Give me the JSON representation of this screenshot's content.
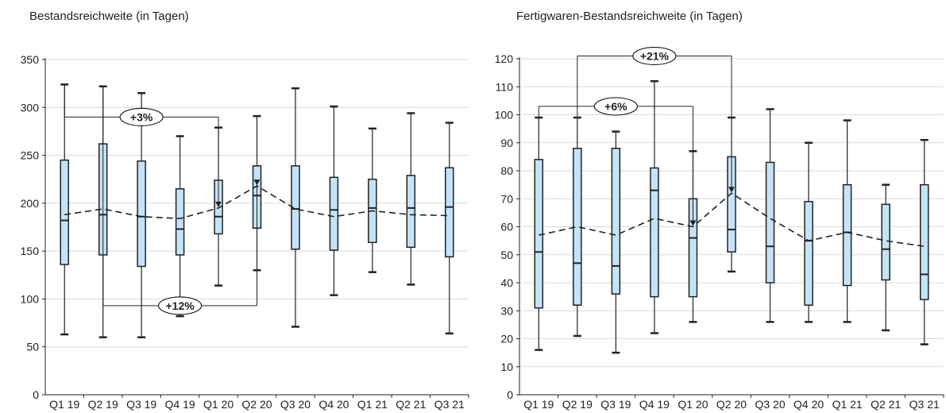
{
  "chart_data": [
    {
      "type": "box",
      "title": "Bestandsreichweite (in Tagen)",
      "categories": [
        "Q1 19",
        "Q2 19",
        "Q3 19",
        "Q4 19",
        "Q1 20",
        "Q2 20",
        "Q3 20",
        "Q4 20",
        "Q1 21",
        "Q2 21",
        "Q3 21"
      ],
      "ylim": [
        0,
        350
      ],
      "yticks": [
        0,
        50,
        100,
        150,
        200,
        250,
        300,
        350
      ],
      "grid": true,
      "box_fill": "#c5e3f7",
      "boxes": [
        {
          "min": 63,
          "q1": 136,
          "median": 182,
          "q3": 245,
          "max": 324
        },
        {
          "min": 60,
          "q1": 146,
          "median": 188,
          "q3": 262,
          "max": 322
        },
        {
          "min": 60,
          "q1": 134,
          "median": 186,
          "q3": 244,
          "max": 315
        },
        {
          "min": 82,
          "q1": 146,
          "median": 173,
          "q3": 215,
          "max": 270
        },
        {
          "min": 114,
          "q1": 168,
          "median": 186,
          "q3": 224,
          "max": 279
        },
        {
          "min": 130,
          "q1": 174,
          "median": 208,
          "q3": 239,
          "max": 291
        },
        {
          "min": 71,
          "q1": 152,
          "median": 194,
          "q3": 239,
          "max": 320
        },
        {
          "min": 104,
          "q1": 151,
          "median": 193,
          "q3": 227,
          "max": 301
        },
        {
          "min": 128,
          "q1": 159,
          "median": 195,
          "q3": 225,
          "max": 278
        },
        {
          "min": 115,
          "q1": 154,
          "median": 195,
          "q3": 229,
          "max": 294
        },
        {
          "min": 64,
          "q1": 144,
          "median": 196,
          "q3": 237,
          "max": 284
        }
      ],
      "mean_line": [
        188,
        194,
        186,
        184,
        195,
        218,
        194,
        186,
        192,
        188,
        187
      ],
      "annotations": [
        {
          "label": "+12%",
          "from": 1,
          "to": 5,
          "level": 93
        },
        {
          "label": "+3%",
          "from": 0,
          "to": 4,
          "level": 290
        }
      ]
    },
    {
      "type": "box",
      "title": "Fertigwaren-Bestandsreichweite (in Tagen)",
      "categories": [
        "Q1 19",
        "Q2 19",
        "Q3 19",
        "Q4 19",
        "Q1 20",
        "Q2 20",
        "Q3 20",
        "Q4 20",
        "Q1 21",
        "Q2 21",
        "Q3 21"
      ],
      "ylim": [
        0,
        120
      ],
      "yticks": [
        0,
        10,
        20,
        30,
        40,
        50,
        60,
        70,
        80,
        90,
        100,
        110,
        120
      ],
      "grid": true,
      "box_fill": "#c5e3f7",
      "boxes": [
        {
          "min": 16,
          "q1": 31,
          "median": 51,
          "q3": 84,
          "max": 99
        },
        {
          "min": 21,
          "q1": 32,
          "median": 47,
          "q3": 88,
          "max": 99
        },
        {
          "min": 15,
          "q1": 36,
          "median": 46,
          "q3": 88,
          "max": 94
        },
        {
          "min": 22,
          "q1": 35,
          "median": 73,
          "q3": 81,
          "max": 112
        },
        {
          "min": 26,
          "q1": 35,
          "median": 56,
          "q3": 70,
          "max": 87
        },
        {
          "min": 44,
          "q1": 51,
          "median": 59,
          "q3": 85,
          "max": 99
        },
        {
          "min": 26,
          "q1": 40,
          "median": 53,
          "q3": 83,
          "max": 102
        },
        {
          "min": 26,
          "q1": 32,
          "median": 55,
          "q3": 69,
          "max": 90
        },
        {
          "min": 26,
          "q1": 39,
          "median": 58,
          "q3": 75,
          "max": 98
        },
        {
          "min": 23,
          "q1": 41,
          "median": 52,
          "q3": 68,
          "max": 75
        },
        {
          "min": 18,
          "q1": 34,
          "median": 43,
          "q3": 75,
          "max": 91
        }
      ],
      "mean_line": [
        57,
        60,
        57,
        63,
        60,
        72,
        63,
        55,
        58,
        55,
        53
      ],
      "annotations": [
        {
          "label": "+21%",
          "from": 1,
          "to": 5,
          "level": 121
        },
        {
          "label": "+6%",
          "from": 0,
          "to": 4,
          "level": 103
        }
      ]
    }
  ]
}
